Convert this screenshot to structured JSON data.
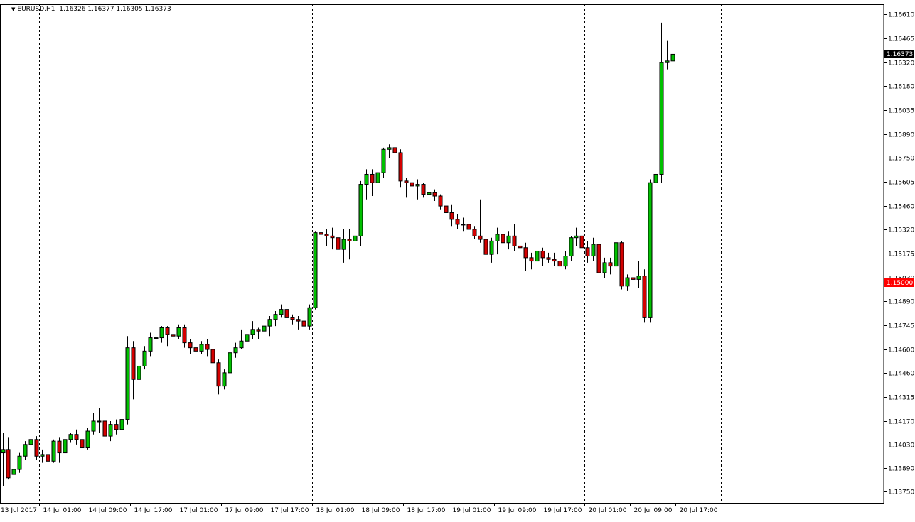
{
  "header": {
    "symbol": "EURUSD,H1",
    "ohlc": "1.16326 1.16377 1.16305 1.16373",
    "menu_arrow_icon": "triangle-down-icon"
  },
  "colors": {
    "background": "#ffffff",
    "bull": "#00c000",
    "bear": "#d40000",
    "wick": "#000000",
    "grid": "#000000",
    "level_line": "#e00000",
    "current_price_bg": "#000000",
    "level_price_bg": "#ff0000"
  },
  "chart_data": {
    "type": "candlestick",
    "symbol": "EURUSD",
    "timeframe": "H1",
    "ylim": [
      1.1368,
      1.1667
    ],
    "y_ticks": [
      "1.16610",
      "1.16465",
      "1.16320",
      "1.16180",
      "1.16035",
      "1.15890",
      "1.15750",
      "1.15605",
      "1.15460",
      "1.15320",
      "1.15175",
      "1.15030",
      "1.14890",
      "1.14745",
      "1.14600",
      "1.14460",
      "1.14315",
      "1.14170",
      "1.14030",
      "1.13890",
      "1.13750"
    ],
    "x_ticks": [
      "13 Jul 2017",
      "14 Jul 01:00",
      "14 Jul 09:00",
      "14 Jul 17:00",
      "17 Jul 01:00",
      "17 Jul 09:00",
      "17 Jul 17:00",
      "18 Jul 01:00",
      "18 Jul 09:00",
      "18 Jul 17:00",
      "19 Jul 01:00",
      "19 Jul 09:00",
      "19 Jul 17:00",
      "20 Jul 01:00",
      "20 Jul 09:00",
      "20 Jul 17:00"
    ],
    "period_separators": [
      "14 Jul 01:00",
      "17 Jul 01:00",
      "18 Jul 01:00",
      "19 Jul 01:00",
      "20 Jul 01:00",
      "21 Jul 01:00"
    ],
    "horizontal_level": {
      "value": "1.15000"
    },
    "current_price": "1.16373",
    "candles": [
      [
        1.1398,
        1.141,
        1.1378,
        1.14
      ],
      [
        1.14,
        1.1407,
        1.1382,
        1.1383
      ],
      [
        1.1385,
        1.1392,
        1.1378,
        1.1388
      ],
      [
        1.1388,
        1.1398,
        1.1386,
        1.1396
      ],
      [
        1.1396,
        1.1405,
        1.1394,
        1.1403
      ],
      [
        1.1403,
        1.1408,
        1.1396,
        1.1406
      ],
      [
        1.1406,
        1.1408,
        1.1394,
        1.1396
      ],
      [
        1.1396,
        1.14,
        1.1392,
        1.1397
      ],
      [
        1.1397,
        1.1399,
        1.1391,
        1.1393
      ],
      [
        1.1393,
        1.1406,
        1.1392,
        1.1405
      ],
      [
        1.1405,
        1.1407,
        1.1392,
        1.1398
      ],
      [
        1.1398,
        1.1408,
        1.1396,
        1.1406
      ],
      [
        1.1406,
        1.141,
        1.1404,
        1.1409
      ],
      [
        1.1409,
        1.1412,
        1.1403,
        1.1406
      ],
      [
        1.1406,
        1.1411,
        1.1398,
        1.1401
      ],
      [
        1.1401,
        1.1413,
        1.14,
        1.1411
      ],
      [
        1.1411,
        1.1422,
        1.1409,
        1.1417
      ],
      [
        1.1417,
        1.1425,
        1.141,
        1.1417
      ],
      [
        1.1417,
        1.142,
        1.1406,
        1.1408
      ],
      [
        1.1408,
        1.1417,
        1.1405,
        1.1415
      ],
      [
        1.1415,
        1.1418,
        1.1409,
        1.1412
      ],
      [
        1.1412,
        1.142,
        1.1411,
        1.1418
      ],
      [
        1.1418,
        1.1468,
        1.1415,
        1.1461
      ],
      [
        1.1461,
        1.1465,
        1.143,
        1.1442
      ],
      [
        1.1442,
        1.1455,
        1.144,
        1.145
      ],
      [
        1.145,
        1.1462,
        1.1448,
        1.1459
      ],
      [
        1.1459,
        1.147,
        1.1456,
        1.1467
      ],
      [
        1.1467,
        1.1472,
        1.1462,
        1.1467
      ],
      [
        1.1467,
        1.1474,
        1.1464,
        1.1473
      ],
      [
        1.1473,
        1.1474,
        1.1462,
        1.1469
      ],
      [
        1.1469,
        1.1472,
        1.1465,
        1.1468
      ],
      [
        1.1468,
        1.1475,
        1.1466,
        1.1473
      ],
      [
        1.1473,
        1.1475,
        1.1461,
        1.1464
      ],
      [
        1.1464,
        1.1466,
        1.1457,
        1.1461
      ],
      [
        1.1461,
        1.1464,
        1.1455,
        1.1459
      ],
      [
        1.1459,
        1.1465,
        1.1457,
        1.1463
      ],
      [
        1.1463,
        1.1466,
        1.1456,
        1.146
      ],
      [
        1.146,
        1.1463,
        1.145,
        1.1452
      ],
      [
        1.1452,
        1.1454,
        1.1433,
        1.1438
      ],
      [
        1.1438,
        1.1448,
        1.1436,
        1.1446
      ],
      [
        1.1446,
        1.146,
        1.1444,
        1.1458
      ],
      [
        1.1458,
        1.1464,
        1.1455,
        1.1461
      ],
      [
        1.1461,
        1.1472,
        1.146,
        1.1465
      ],
      [
        1.1465,
        1.147,
        1.1461,
        1.1469
      ],
      [
        1.1469,
        1.1477,
        1.1466,
        1.1472
      ],
      [
        1.1472,
        1.1473,
        1.1466,
        1.1471
      ],
      [
        1.1471,
        1.1488,
        1.1466,
        1.1474
      ],
      [
        1.1474,
        1.148,
        1.1468,
        1.1478
      ],
      [
        1.1478,
        1.1483,
        1.1474,
        1.1481
      ],
      [
        1.1481,
        1.1487,
        1.1479,
        1.1484
      ],
      [
        1.1484,
        1.1486,
        1.1478,
        1.1479
      ],
      [
        1.1479,
        1.1481,
        1.1475,
        1.1478
      ],
      [
        1.1478,
        1.148,
        1.1472,
        1.1477
      ],
      [
        1.1477,
        1.148,
        1.1471,
        1.1474
      ],
      [
        1.1474,
        1.1487,
        1.1472,
        1.1485
      ],
      [
        1.1485,
        1.1531,
        1.1484,
        1.153
      ],
      [
        1.153,
        1.1535,
        1.1525,
        1.1529
      ],
      [
        1.1529,
        1.1532,
        1.1522,
        1.1528
      ],
      [
        1.1528,
        1.1533,
        1.152,
        1.1527
      ],
      [
        1.1527,
        1.153,
        1.1518,
        1.152
      ],
      [
        1.152,
        1.1532,
        1.1512,
        1.1526
      ],
      [
        1.1526,
        1.1532,
        1.1514,
        1.1525
      ],
      [
        1.1525,
        1.1531,
        1.1519,
        1.1528
      ],
      [
        1.1528,
        1.1561,
        1.1522,
        1.1559
      ],
      [
        1.1559,
        1.1568,
        1.155,
        1.1565
      ],
      [
        1.1565,
        1.1568,
        1.1552,
        1.156
      ],
      [
        1.156,
        1.1575,
        1.1554,
        1.1566
      ],
      [
        1.1566,
        1.1581,
        1.1563,
        1.158
      ],
      [
        1.158,
        1.1583,
        1.1575,
        1.1581
      ],
      [
        1.1581,
        1.1583,
        1.1574,
        1.1578
      ],
      [
        1.1578,
        1.158,
        1.1557,
        1.1561
      ],
      [
        1.1561,
        1.1563,
        1.1551,
        1.156
      ],
      [
        1.156,
        1.1564,
        1.1555,
        1.1558
      ],
      [
        1.1558,
        1.1562,
        1.155,
        1.1559
      ],
      [
        1.1559,
        1.156,
        1.1551,
        1.1553
      ],
      [
        1.1553,
        1.1557,
        1.1549,
        1.1554
      ],
      [
        1.1554,
        1.1556,
        1.1549,
        1.1552
      ],
      [
        1.1552,
        1.1553,
        1.1544,
        1.1546
      ],
      [
        1.1546,
        1.155,
        1.154,
        1.1542
      ],
      [
        1.1542,
        1.1547,
        1.1534,
        1.1538
      ],
      [
        1.1538,
        1.1541,
        1.1532,
        1.1535
      ],
      [
        1.1535,
        1.1539,
        1.1531,
        1.1535
      ],
      [
        1.1535,
        1.1538,
        1.153,
        1.1532
      ],
      [
        1.1532,
        1.1534,
        1.1526,
        1.1528
      ],
      [
        1.1528,
        1.155,
        1.1524,
        1.1526
      ],
      [
        1.1526,
        1.1532,
        1.1513,
        1.1517
      ],
      [
        1.1517,
        1.1527,
        1.1512,
        1.1525
      ],
      [
        1.1525,
        1.1533,
        1.1517,
        1.1529
      ],
      [
        1.1529,
        1.1533,
        1.152,
        1.1524
      ],
      [
        1.1524,
        1.1531,
        1.152,
        1.1528
      ],
      [
        1.1528,
        1.1535,
        1.1519,
        1.1522
      ],
      [
        1.1522,
        1.1528,
        1.1516,
        1.1521
      ],
      [
        1.1521,
        1.1524,
        1.1507,
        1.1515
      ],
      [
        1.1515,
        1.1518,
        1.1508,
        1.1513
      ],
      [
        1.1513,
        1.152,
        1.151,
        1.1519
      ],
      [
        1.1519,
        1.1521,
        1.151,
        1.1515
      ],
      [
        1.1515,
        1.1518,
        1.1512,
        1.1514
      ],
      [
        1.1514,
        1.1518,
        1.151,
        1.1513
      ],
      [
        1.1513,
        1.1516,
        1.1508,
        1.151
      ],
      [
        1.151,
        1.1519,
        1.1508,
        1.1516
      ],
      [
        1.1516,
        1.1528,
        1.1513,
        1.1527
      ],
      [
        1.1527,
        1.1533,
        1.1522,
        1.1528
      ],
      [
        1.1528,
        1.1531,
        1.1519,
        1.1521
      ],
      [
        1.1521,
        1.1525,
        1.1512,
        1.1516
      ],
      [
        1.1516,
        1.1527,
        1.1513,
        1.1523
      ],
      [
        1.1523,
        1.1526,
        1.1503,
        1.1506
      ],
      [
        1.1506,
        1.1515,
        1.1503,
        1.1512
      ],
      [
        1.1512,
        1.1515,
        1.1505,
        1.151
      ],
      [
        1.151,
        1.1526,
        1.1508,
        1.1524
      ],
      [
        1.1524,
        1.1525,
        1.1496,
        1.1498
      ],
      [
        1.1498,
        1.1505,
        1.1495,
        1.1503
      ],
      [
        1.1503,
        1.1506,
        1.1494,
        1.1502
      ],
      [
        1.1502,
        1.1513,
        1.1497,
        1.1504
      ],
      [
        1.1504,
        1.1508,
        1.1476,
        1.1479
      ],
      [
        1.1479,
        1.1562,
        1.1476,
        1.156
      ],
      [
        1.156,
        1.1575,
        1.1542,
        1.1565
      ],
      [
        1.1565,
        1.1656,
        1.156,
        1.1632
      ],
      [
        1.1632,
        1.1645,
        1.1628,
        1.1633
      ],
      [
        1.1633,
        1.1638,
        1.163,
        1.1637
      ]
    ]
  }
}
